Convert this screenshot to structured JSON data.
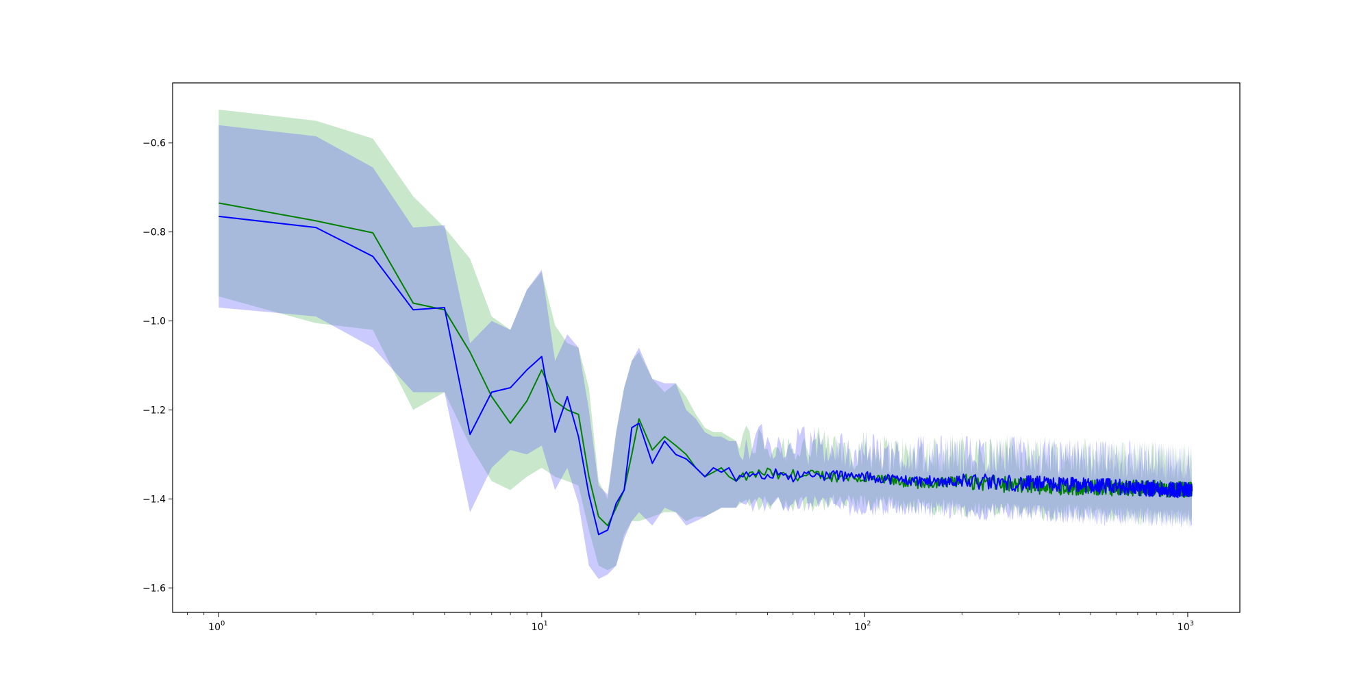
{
  "chart_data": {
    "type": "line",
    "title": "",
    "xlabel": "",
    "ylabel": "",
    "xscale": "log",
    "xlim": [
      0.72,
      1450
    ],
    "ylim": [
      -1.655,
      -0.465
    ],
    "grid": false,
    "legend": "none",
    "x_ticks": [
      {
        "base": "10",
        "exp": "0",
        "value": 1
      },
      {
        "base": "10",
        "exp": "1",
        "value": 10
      },
      {
        "base": "10",
        "exp": "2",
        "value": 100
      },
      {
        "base": "10",
        "exp": "3",
        "value": 1000
      }
    ],
    "y_ticks": [
      {
        "label": "−0.6",
        "value": -0.6
      },
      {
        "label": "−0.8",
        "value": -0.8
      },
      {
        "label": "−1.0",
        "value": -1.0
      },
      {
        "label": "−1.2",
        "value": -1.2
      },
      {
        "label": "−1.4",
        "value": -1.4
      },
      {
        "label": "−1.6",
        "value": -1.6
      }
    ],
    "series": [
      {
        "color": "#008000",
        "band_color": "#4caf50",
        "x": [
          1,
          2,
          3,
          4,
          5,
          6,
          7,
          8,
          9,
          10,
          11,
          12,
          13,
          14,
          15,
          16,
          17,
          18,
          19,
          20,
          22,
          24,
          26,
          28,
          30,
          32,
          34,
          36,
          38,
          40,
          43,
          46,
          50,
          55,
          60,
          65,
          70,
          80,
          90,
          100,
          120,
          150,
          200,
          300,
          500,
          700,
          1000
        ],
        "mean": [
          -0.735,
          -0.775,
          -0.802,
          -0.96,
          -0.975,
          -1.07,
          -1.17,
          -1.23,
          -1.18,
          -1.11,
          -1.18,
          -1.2,
          -1.21,
          -1.35,
          -1.44,
          -1.46,
          -1.42,
          -1.38,
          -1.3,
          -1.22,
          -1.29,
          -1.26,
          -1.28,
          -1.3,
          -1.33,
          -1.35,
          -1.34,
          -1.33,
          -1.35,
          -1.36,
          -1.35,
          -1.345,
          -1.34,
          -1.35,
          -1.345,
          -1.35,
          -1.345,
          -1.35,
          -1.35,
          -1.355,
          -1.36,
          -1.365,
          -1.36,
          -1.37,
          -1.375,
          -1.375,
          -1.38
        ],
        "upper": [
          -0.525,
          -0.55,
          -0.59,
          -0.72,
          -0.79,
          -0.86,
          -0.99,
          -1.02,
          -0.93,
          -0.89,
          -1.01,
          -1.05,
          -1.06,
          -1.15,
          -1.36,
          -1.4,
          -1.25,
          -1.15,
          -1.09,
          -1.07,
          -1.13,
          -1.16,
          -1.14,
          -1.17,
          -1.21,
          -1.24,
          -1.25,
          -1.25,
          -1.26,
          -1.27,
          -1.27,
          -1.27,
          -1.28,
          -1.28,
          -1.28,
          -1.28,
          -1.28,
          -1.29,
          -1.29,
          -1.29,
          -1.3,
          -1.3,
          -1.3,
          -1.3,
          -1.31,
          -1.31,
          -1.32
        ],
        "lower": [
          -0.945,
          -1.005,
          -1.02,
          -1.2,
          -1.16,
          -1.28,
          -1.36,
          -1.38,
          -1.35,
          -1.33,
          -1.35,
          -1.36,
          -1.37,
          -1.47,
          -1.55,
          -1.56,
          -1.55,
          -1.48,
          -1.45,
          -1.45,
          -1.44,
          -1.43,
          -1.43,
          -1.45,
          -1.44,
          -1.44,
          -1.43,
          -1.42,
          -1.42,
          -1.42,
          -1.41,
          -1.41,
          -1.41,
          -1.41,
          -1.41,
          -1.41,
          -1.41,
          -1.41,
          -1.41,
          -1.41,
          -1.41,
          -1.42,
          -1.42,
          -1.43,
          -1.43,
          -1.44,
          -1.44
        ]
      },
      {
        "color": "#0000ff",
        "band_color": "#6666ff",
        "x": [
          1,
          2,
          3,
          4,
          5,
          6,
          7,
          8,
          9,
          10,
          11,
          12,
          13,
          14,
          15,
          16,
          17,
          18,
          19,
          20,
          22,
          24,
          26,
          28,
          30,
          32,
          34,
          36,
          38,
          40,
          43,
          46,
          50,
          55,
          60,
          65,
          70,
          80,
          90,
          100,
          120,
          150,
          200,
          300,
          500,
          700,
          1000
        ],
        "mean": [
          -0.765,
          -0.79,
          -0.855,
          -0.975,
          -0.97,
          -1.255,
          -1.16,
          -1.15,
          -1.11,
          -1.08,
          -1.25,
          -1.17,
          -1.26,
          -1.39,
          -1.48,
          -1.47,
          -1.41,
          -1.38,
          -1.24,
          -1.23,
          -1.32,
          -1.27,
          -1.3,
          -1.31,
          -1.33,
          -1.35,
          -1.33,
          -1.34,
          -1.33,
          -1.36,
          -1.35,
          -1.34,
          -1.345,
          -1.34,
          -1.35,
          -1.345,
          -1.35,
          -1.345,
          -1.35,
          -1.35,
          -1.355,
          -1.36,
          -1.36,
          -1.365,
          -1.37,
          -1.375,
          -1.38
        ],
        "upper": [
          -0.56,
          -0.585,
          -0.655,
          -0.79,
          -0.785,
          -1.05,
          -1.0,
          -1.02,
          -0.93,
          -0.885,
          -1.09,
          -1.03,
          -1.06,
          -1.2,
          -1.37,
          -1.39,
          -1.25,
          -1.15,
          -1.09,
          -1.06,
          -1.13,
          -1.14,
          -1.14,
          -1.2,
          -1.22,
          -1.25,
          -1.26,
          -1.26,
          -1.27,
          -1.27,
          -1.27,
          -1.27,
          -1.28,
          -1.28,
          -1.28,
          -1.28,
          -1.28,
          -1.29,
          -1.29,
          -1.29,
          -1.3,
          -1.3,
          -1.3,
          -1.3,
          -1.31,
          -1.31,
          -1.32
        ],
        "lower": [
          -0.97,
          -0.99,
          -1.06,
          -1.16,
          -1.16,
          -1.43,
          -1.33,
          -1.29,
          -1.3,
          -1.28,
          -1.38,
          -1.33,
          -1.41,
          -1.55,
          -1.58,
          -1.57,
          -1.55,
          -1.49,
          -1.45,
          -1.43,
          -1.46,
          -1.42,
          -1.43,
          -1.46,
          -1.45,
          -1.44,
          -1.43,
          -1.42,
          -1.42,
          -1.42,
          -1.42,
          -1.41,
          -1.41,
          -1.41,
          -1.41,
          -1.41,
          -1.41,
          -1.41,
          -1.42,
          -1.42,
          -1.42,
          -1.42,
          -1.43,
          -1.43,
          -1.44,
          -1.44,
          -1.45
        ]
      }
    ]
  }
}
